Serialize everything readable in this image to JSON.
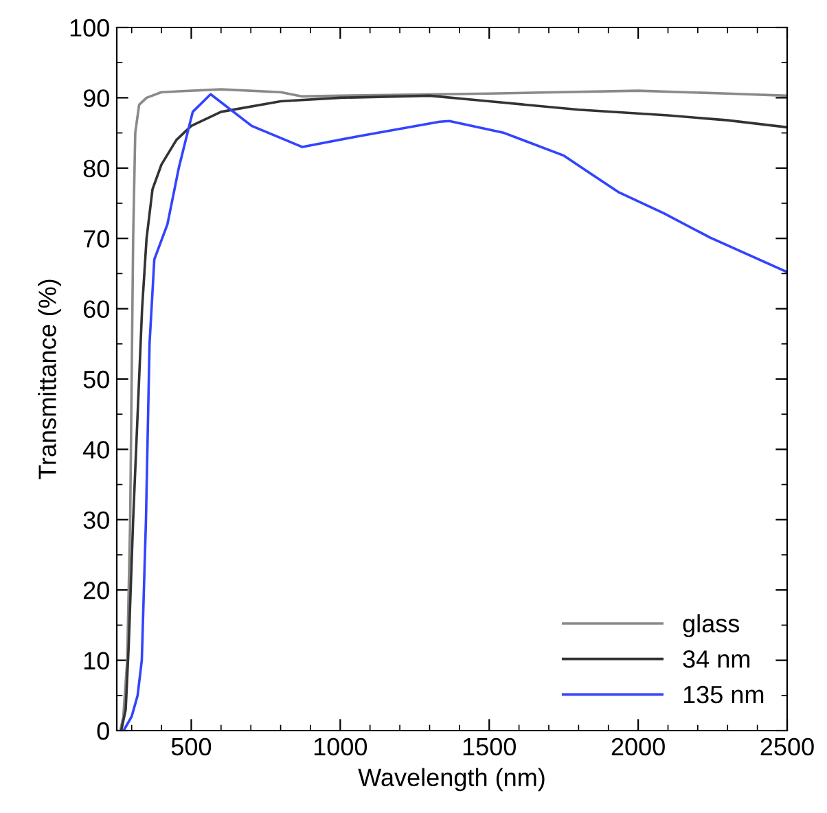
{
  "chart_data": {
    "type": "line",
    "xlabel": "Wavelength (nm)",
    "ylabel": "Transmittance (%)",
    "xlim": [
      250,
      2500
    ],
    "xticks": [
      500,
      1000,
      1500,
      2000,
      2500
    ],
    "ylim": [
      0,
      100
    ],
    "yticks": [
      0,
      10,
      20,
      30,
      40,
      50,
      60,
      70,
      80,
      90,
      100
    ],
    "grid": false,
    "legend": "bottom right",
    "marker": "none",
    "line_style": "solid",
    "series": [
      {
        "name": "glass",
        "color": "#8a8a8a",
        "x": [
          262,
          272,
          285,
          295,
          300,
          305,
          312,
          325,
          350,
          400,
          600,
          800,
          870,
          1000,
          1500,
          2000,
          2300,
          2500
        ],
        "values": [
          0,
          2,
          10,
          30,
          50,
          70,
          85,
          89,
          90,
          90.8,
          91.2,
          90.8,
          90.2,
          90.3,
          90.6,
          91,
          90.6,
          90.3
        ]
      },
      {
        "name": "34 nm",
        "color": "#333333",
        "x": [
          265,
          280,
          290,
          305,
          320,
          335,
          350,
          370,
          400,
          450,
          500,
          600,
          800,
          1000,
          1300,
          1500,
          1800,
          2100,
          2300,
          2500
        ],
        "values": [
          0,
          3,
          12,
          30,
          45,
          60,
          70,
          77,
          80.5,
          84,
          86,
          88,
          89.5,
          90,
          90.3,
          89.5,
          88.3,
          87.5,
          86.8,
          85.8
        ]
      },
      {
        "name": "135 nm",
        "color": "#3344ff",
        "x": [
          273,
          300,
          320,
          334,
          348,
          360,
          376,
          420,
          458,
          505,
          565,
          703,
          873,
          1057,
          1334,
          1366,
          1550,
          1749,
          1933,
          2085,
          2242,
          2500
        ],
        "values": [
          0,
          2,
          5,
          10,
          30,
          55,
          67,
          72,
          80,
          88,
          90.5,
          86,
          83,
          84.5,
          86.6,
          86.7,
          85,
          81.8,
          76.6,
          73.6,
          70.1,
          65.2
        ]
      }
    ]
  }
}
